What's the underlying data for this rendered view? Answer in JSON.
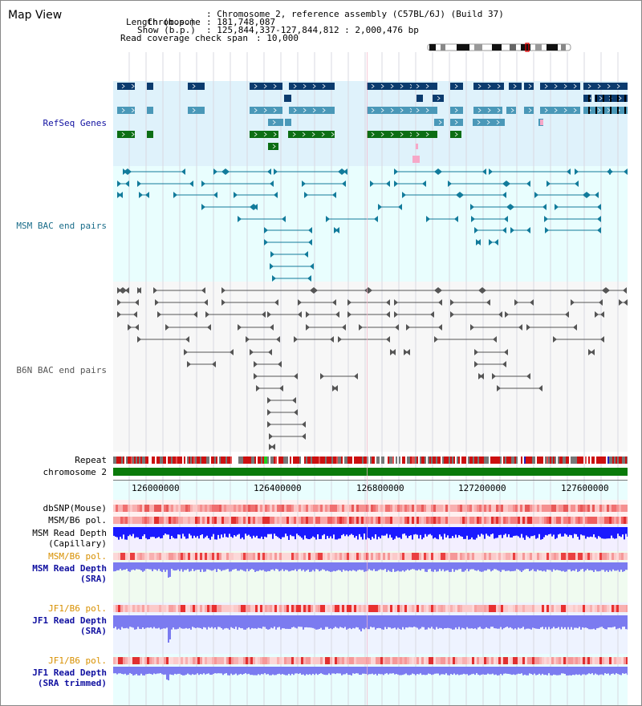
{
  "title": "Map View",
  "info": {
    "chromosome_key": "Chromosome",
    "chromosome_val": ": Chromosome 2, reference assembly (C57BL/6J) (Build 37)",
    "length_key": "Length (b.p.)",
    "length_val": ": 181,748,087",
    "show_key": "Show (b.p.)",
    "show_val": ": 125,844,337-127,844,812 : 2,000,476 bp",
    "coverage_key": "Read coverage check span",
    "coverage_val": ": 10,000"
  },
  "tracks": {
    "refseq": "RefSeq Genes",
    "msm_bac": "MSM BAC end pairs",
    "b6n_bac": "B6N BAC end pairs",
    "repeat": "Repeat",
    "chromosome": "chromosome 2",
    "dbsnp": "dbSNP(Mouse)",
    "msm_b6_pol": "MSM/B6 pol.",
    "msm_depth_cap_1": "MSM Read Depth",
    "msm_depth_cap_2": "(Capillary)",
    "msm_b6_pol2": "MSM/B6 pol.",
    "msm_depth_sra_1": "MSM Read Depth",
    "msm_depth_sra_2": "(SRA)",
    "jf1_b6_pol": "JF1/B6 pol.",
    "jf1_depth_sra_1": "JF1 Read Depth",
    "jf1_depth_sra_2": "(SRA)",
    "jf1_b6_pol2": "JF1/B6 pol.",
    "jf1_depth_trim_1": "JF1 Read Depth",
    "jf1_depth_trim_2": "(SRA trimmed)"
  },
  "ruler": {
    "ticks": [
      "126000000",
      "126400000",
      "126800000",
      "127200000",
      "127600000"
    ]
  },
  "colors": {
    "refseq_bg": "#dff2fb",
    "bac_bg": "#e9fefe",
    "gene_dark": "#0b3b6e",
    "gene_mid": "#4a98b8",
    "gene_green": "#0c6e14",
    "msm_line": "#127b9b",
    "b6n_line": "#555555",
    "chrom_green": "#0a7a0a",
    "label_blue": "#1010a0",
    "label_orange": "#d89000",
    "label_teal": "#1a6d8a",
    "depth_blue": "#1a1aff",
    "depth_lilac": "#7b7bf0"
  }
}
